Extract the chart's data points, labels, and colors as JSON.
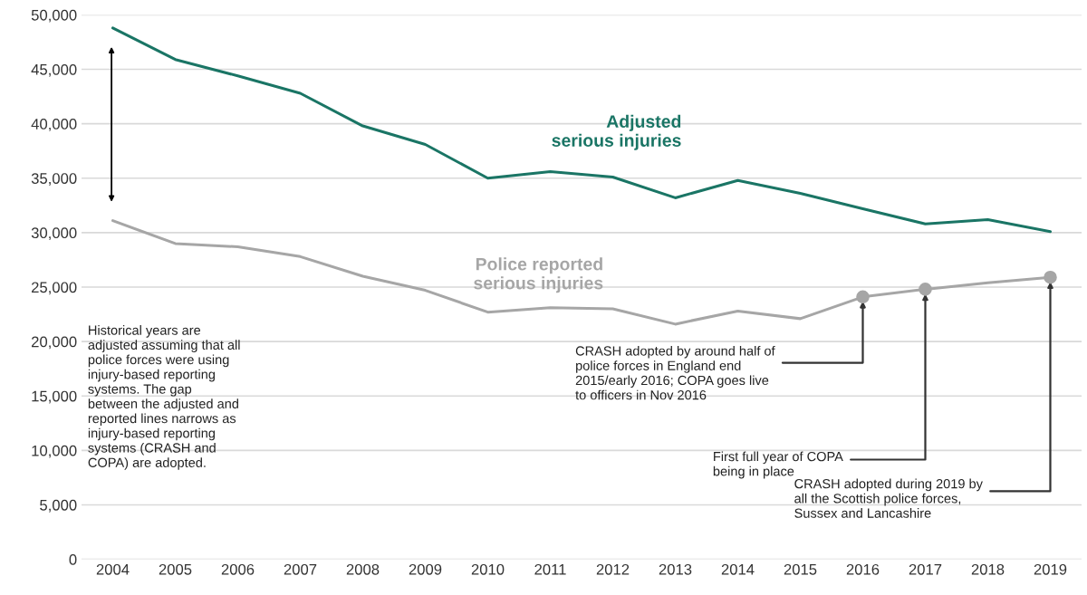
{
  "chart_data": {
    "type": "line",
    "categories": [
      "2004",
      "2005",
      "2006",
      "2007",
      "2008",
      "2009",
      "2010",
      "2011",
      "2012",
      "2013",
      "2014",
      "2015",
      "2016",
      "2017",
      "2018",
      "2019"
    ],
    "series": [
      {
        "name": "Adjusted\nserious injuries",
        "color": "#1a7565",
        "values": [
          48800,
          45900,
          44400,
          42800,
          39800,
          38100,
          35000,
          35600,
          35100,
          33200,
          34800,
          33600,
          32200,
          30800,
          31200,
          30100
        ]
      },
      {
        "name": "Police reported\nserious injuries",
        "color": "#a6a6a6",
        "values": [
          31100,
          29000,
          28700,
          27800,
          26000,
          24700,
          22700,
          23100,
          23000,
          21600,
          22800,
          22100,
          24100,
          24800,
          25400,
          25900
        ]
      },
      {
        "type": "scatter",
        "color": "#a6a6a6",
        "marker": "circle",
        "values": [
          null,
          null,
          null,
          null,
          null,
          null,
          null,
          null,
          null,
          null,
          null,
          null,
          24100,
          24800,
          null,
          25900
        ]
      }
    ],
    "ylim": [
      0,
      50000
    ],
    "yticks": [
      {
        "value": 0,
        "label": "0"
      },
      {
        "value": 5000,
        "label": "5,000"
      },
      {
        "value": 10000,
        "label": "10,000"
      },
      {
        "value": 15000,
        "label": "15,000"
      },
      {
        "value": 20000,
        "label": "20,000"
      },
      {
        "value": 25000,
        "label": "25,000"
      },
      {
        "value": 30000,
        "label": "30,000"
      },
      {
        "value": 35000,
        "label": "35,000"
      },
      {
        "value": 40000,
        "label": "40,000"
      },
      {
        "value": 45000,
        "label": "45,000"
      },
      {
        "value": 50000,
        "label": "50,000"
      }
    ],
    "grid": "y",
    "marker": "none",
    "line_style": "solid",
    "annotations": [
      "Historical years are\nadjusted assuming that all\npolice forces were using\ninjury-based reporting\nsystems. The gap\nbetween the adjusted and\nreported lines narrows as\ninjury-based reporting\nsystems (CRASH and\nCOPA) are adopted.",
      {
        "text": "CRASH adopted by around half of\npolice forces in England end\n2015/early 2016; COPA goes live\nto officers in Nov 2016",
        "x": "2016",
        "y": 24100
      },
      {
        "text": "First full year of COPA\nbeing in place",
        "x": "2017",
        "y": 24800
      },
      {
        "text": "CRASH adopted during 2019 by\nall the Scottish police forces,\nSussex and Lancashire",
        "x": "2019",
        "y": 25900
      }
    ]
  }
}
